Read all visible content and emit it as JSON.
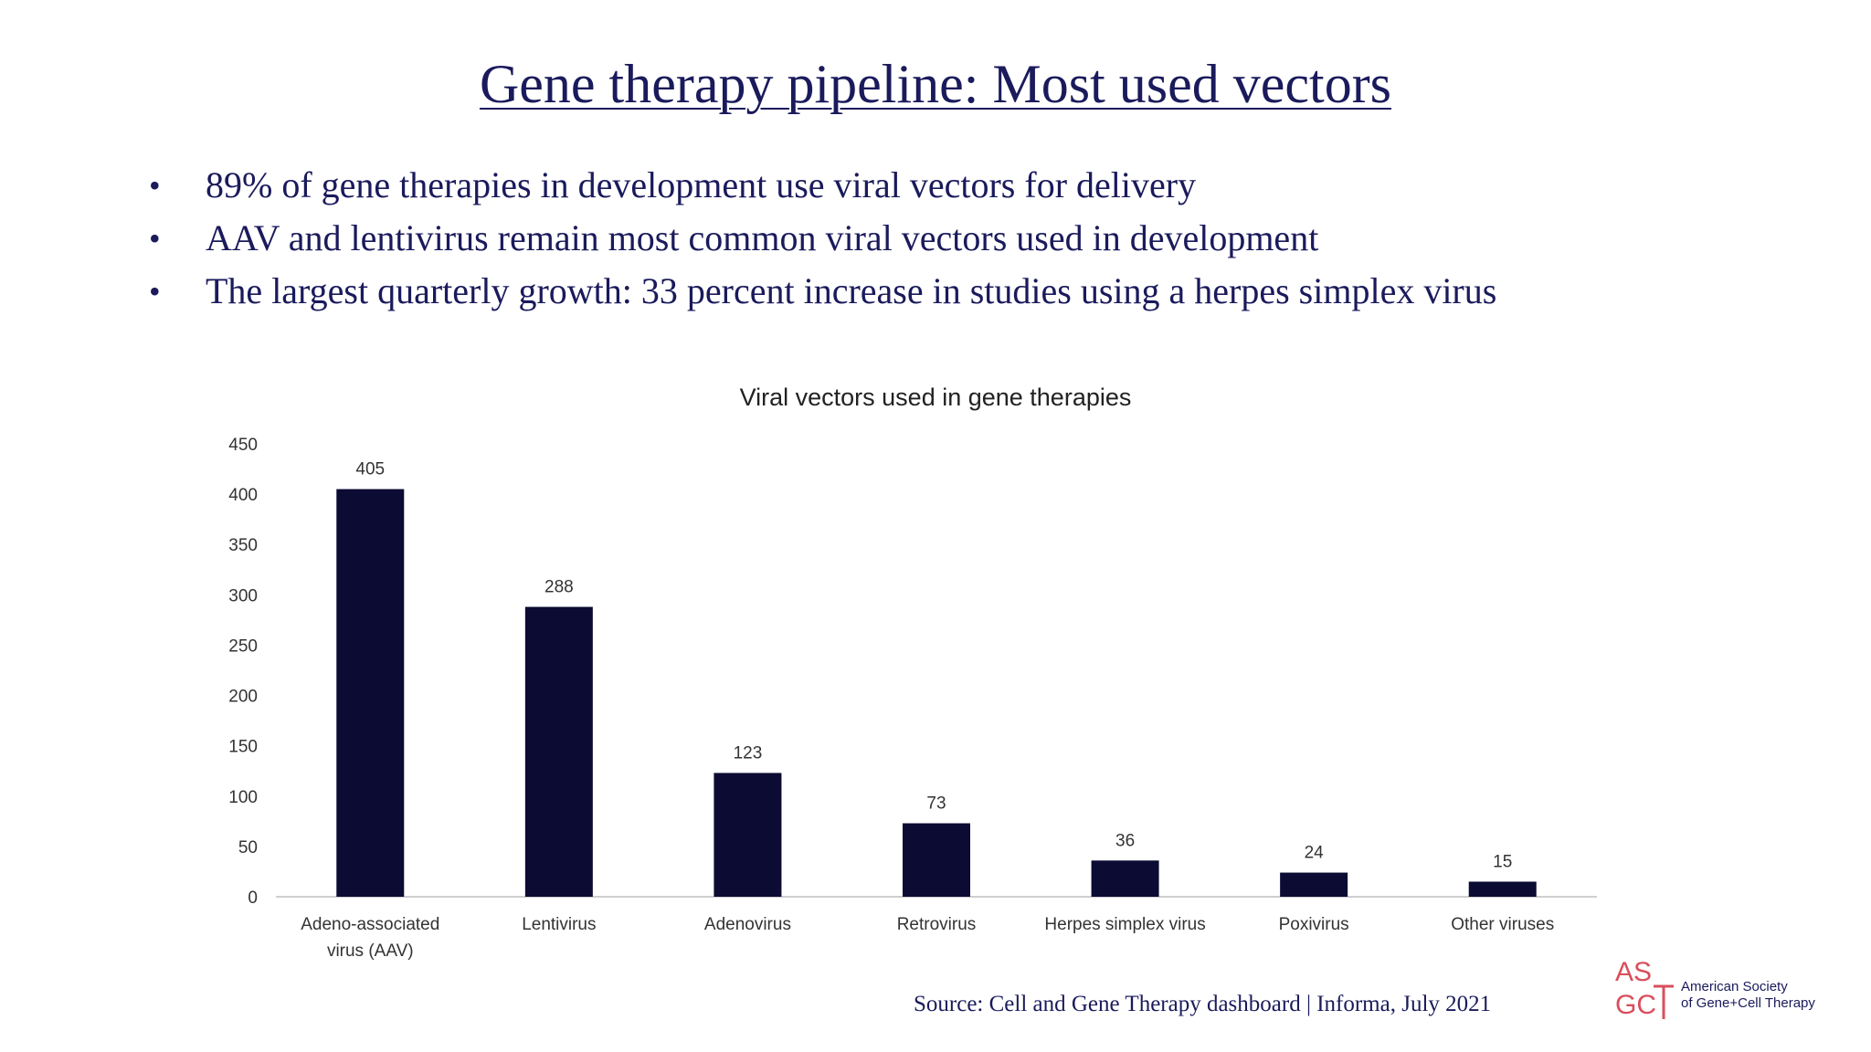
{
  "slide": {
    "title": "Gene therapy pipeline: Most used vectors",
    "bullets": [
      "89% of gene therapies in development use viral vectors for delivery",
      "AAV and lentivirus remain most common viral vectors used in development",
      "The largest quarterly growth: 33 percent increase in studies using a herpes simplex virus"
    ],
    "source": "Source: Cell and Gene Therapy dashboard | Informa, July 2021",
    "logo": {
      "mark_text": "ASGCT",
      "line1": "American Society",
      "line2": "of Gene+Cell Therapy",
      "color": "#d94f5c"
    }
  },
  "chart_data": {
    "type": "bar",
    "title": "Viral vectors used in gene therapies",
    "categories": [
      [
        "Adeno-associated",
        "virus (AAV)"
      ],
      [
        "Lentivirus"
      ],
      [
        "Adenovirus"
      ],
      [
        "Retrovirus"
      ],
      [
        "Herpes simplex virus"
      ],
      [
        "Poxivirus"
      ],
      [
        "Other viruses"
      ]
    ],
    "values": [
      405,
      288,
      123,
      73,
      36,
      24,
      15
    ],
    "ylim": [
      0,
      450
    ],
    "yticks": [
      0,
      50,
      100,
      150,
      200,
      250,
      300,
      350,
      400,
      450
    ],
    "grid": false,
    "bar_color": "#0b0b33"
  }
}
